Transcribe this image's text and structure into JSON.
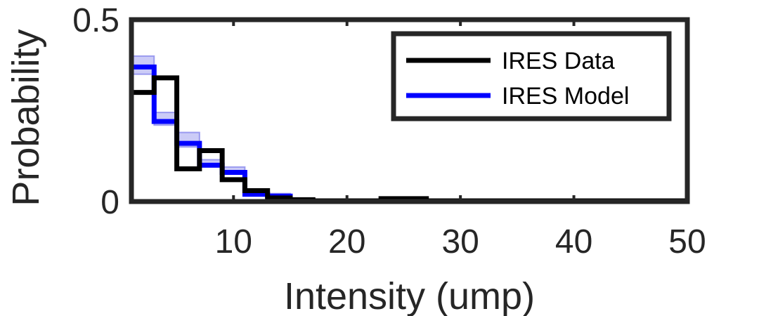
{
  "chart_data": {
    "type": "line",
    "title": "",
    "xlabel": "Intensity (ump)",
    "ylabel": "Probability",
    "xlim": [
      1,
      50
    ],
    "ylim": [
      0,
      0.5
    ],
    "x_ticks": [
      10,
      20,
      30,
      40,
      50
    ],
    "x_tick_labels": [
      "10",
      "20",
      "30",
      "40",
      "50"
    ],
    "y_ticks": [
      0,
      0.5
    ],
    "y_tick_labels": [
      "0",
      "0.5"
    ],
    "grid": false,
    "legend_position": "top-right",
    "bin_edges": [
      1,
      3,
      5,
      7,
      9,
      11,
      13,
      15,
      17,
      19,
      21,
      23,
      25,
      27,
      50
    ],
    "series": [
      {
        "name": "IRES Data",
        "color": "#000000",
        "style": "stairs",
        "values": [
          0.3,
          0.34,
          0.09,
          0.14,
          0.06,
          0.03,
          0.01,
          0.005,
          0.002,
          0.002,
          0.002,
          0.008,
          0.008,
          0.002
        ]
      },
      {
        "name": "IRES Model",
        "color": "#0000ff",
        "style": "stairs",
        "values": [
          0.37,
          0.22,
          0.16,
          0.1,
          0.08,
          0.02,
          0.015,
          0.0,
          0.0,
          0.0,
          0.0,
          0.0,
          0.0,
          0.0
        ],
        "band_lower": [
          0.35,
          0.21,
          0.15,
          0.095,
          0.075,
          0.015,
          0.01,
          0.0,
          0.0,
          0.0,
          0.0,
          0.0,
          0.0,
          0.0
        ],
        "band_upper": [
          0.4,
          0.245,
          0.19,
          0.115,
          0.095,
          0.025,
          0.022,
          0.005,
          0.003,
          0.0,
          0.0,
          0.002,
          0.002,
          0.0
        ],
        "band_color": "#6a6ae8"
      }
    ]
  }
}
